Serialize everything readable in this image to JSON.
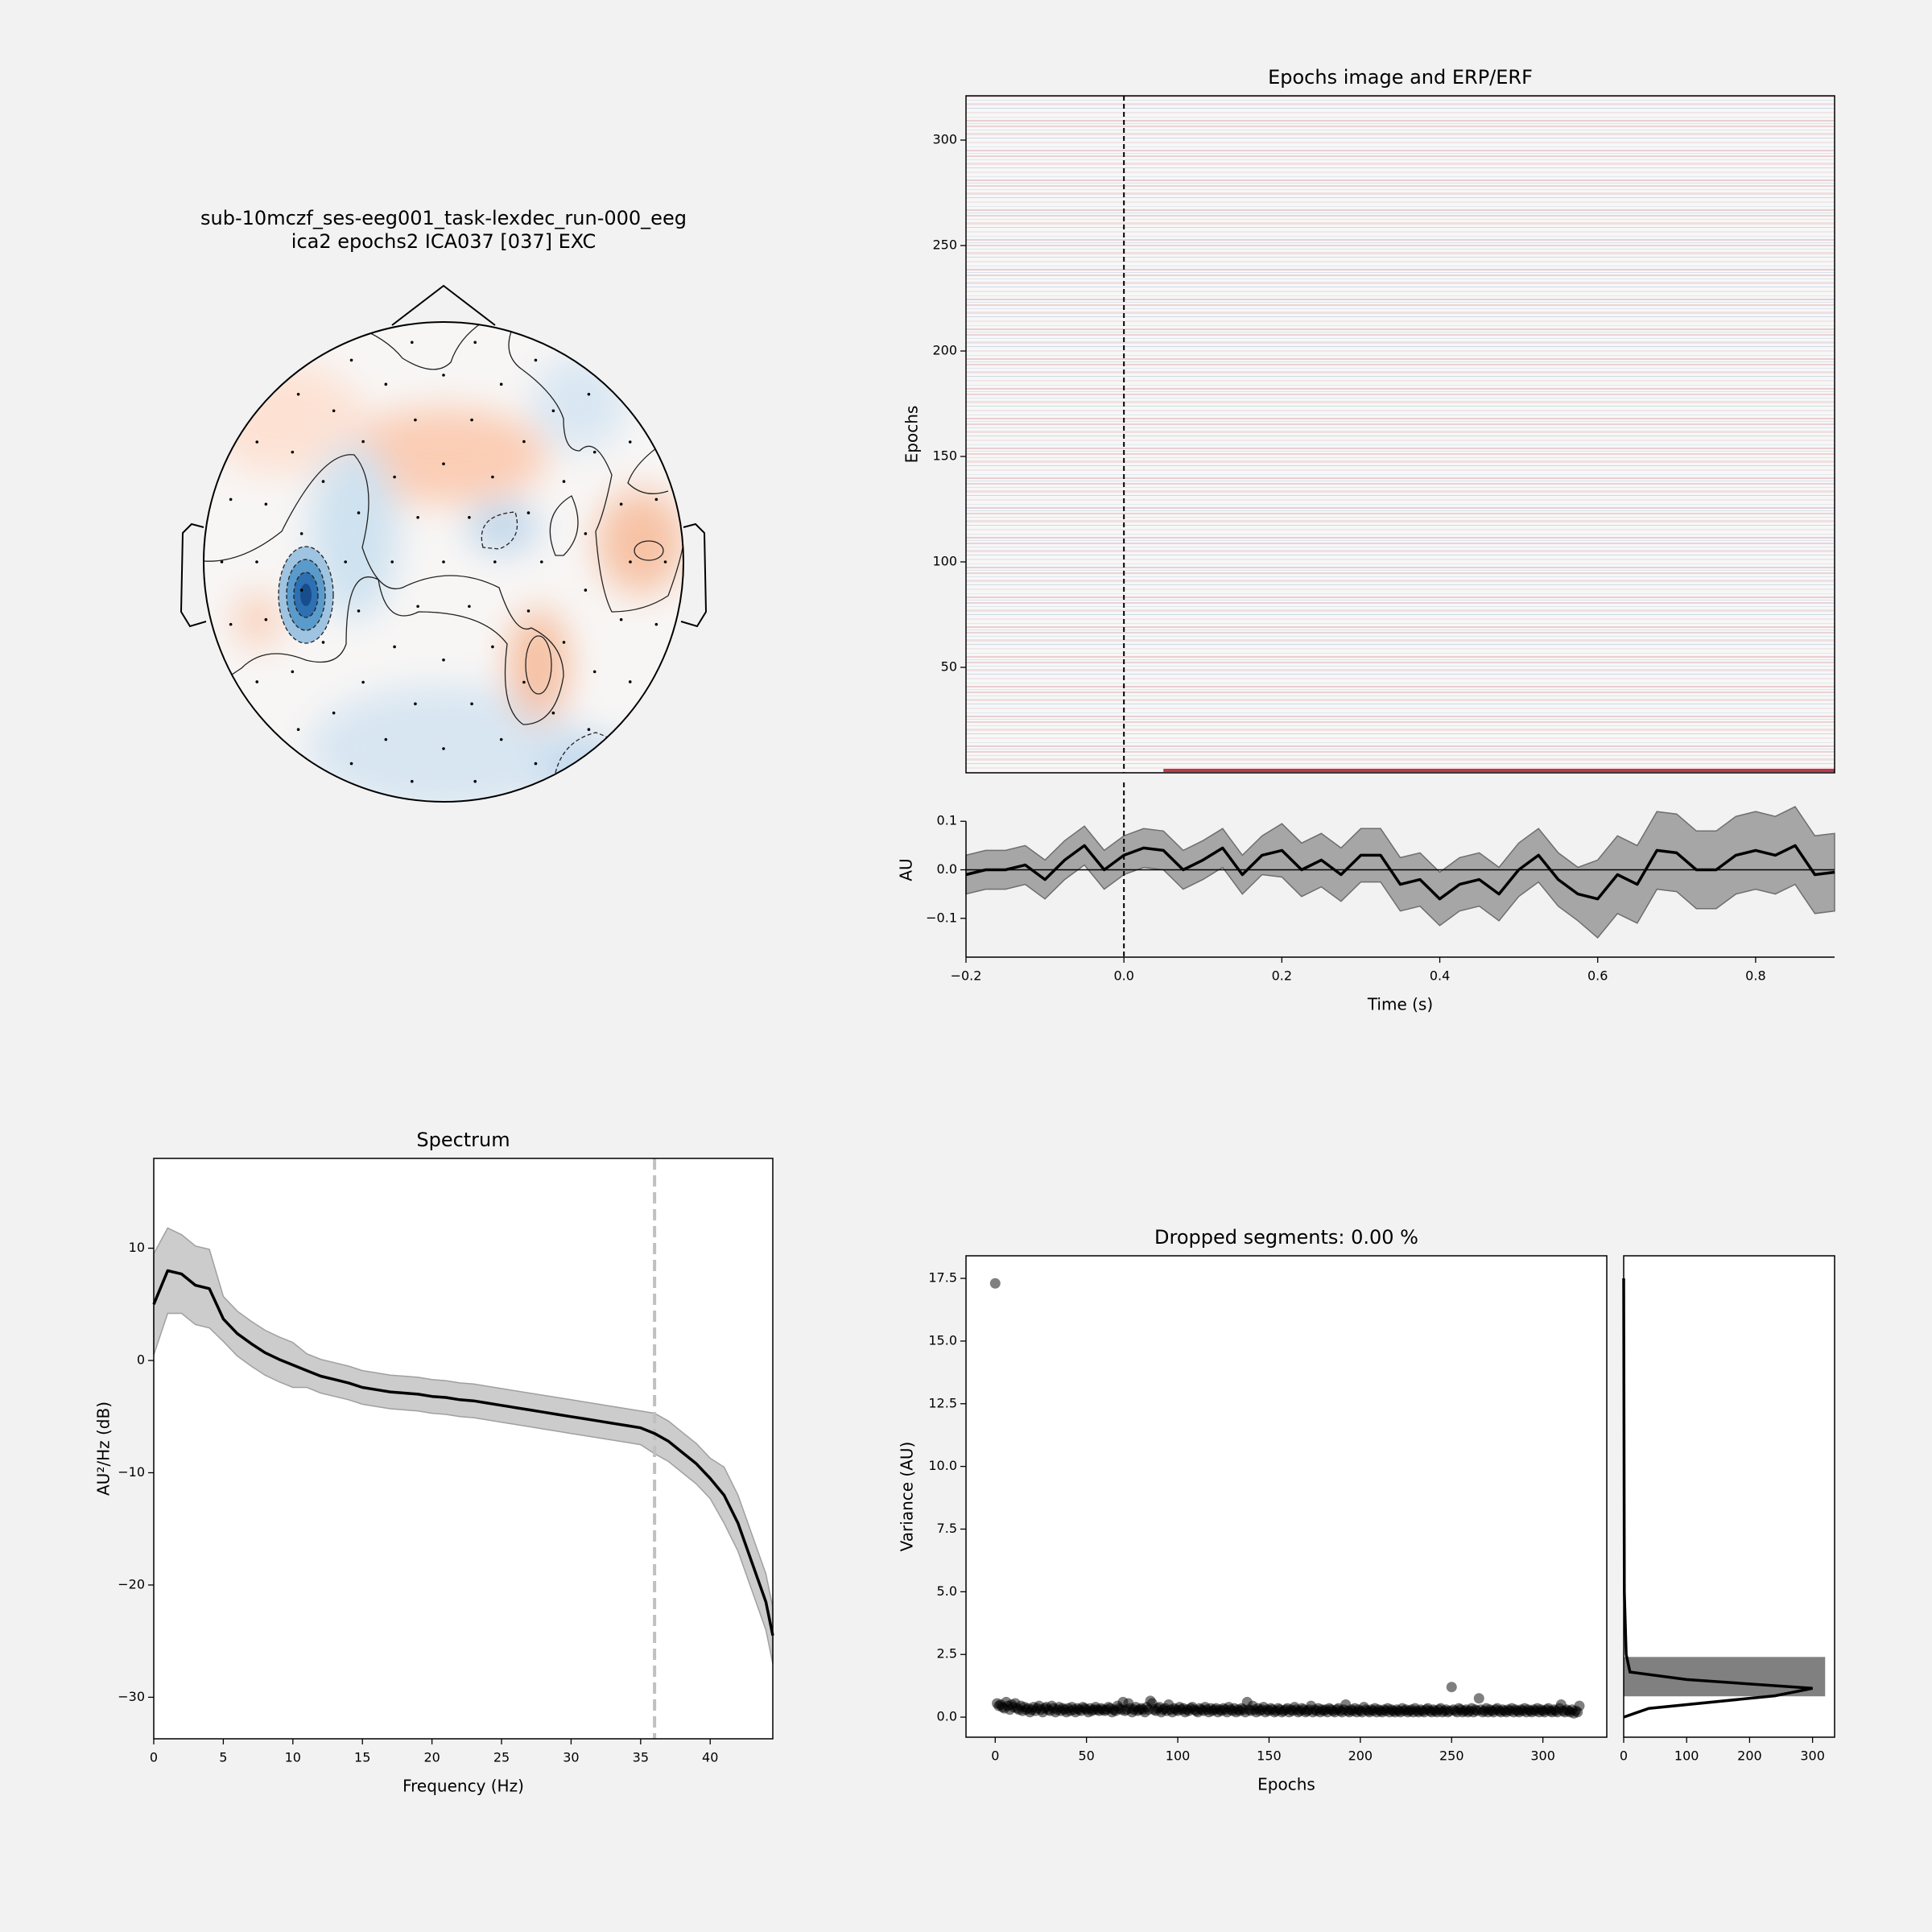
{
  "chart_data": [
    {
      "type": "topomap",
      "title": [
        "sub-10mczf_ses-eeg001_task-lexdec_run-000_eeg",
        "ica2 epochs2 ICA037 [037] EXC"
      ]
    },
    {
      "type": "image",
      "title": "Epochs image and ERP/ERF",
      "y_label": "Epochs",
      "xlim": [
        -0.2,
        0.9
      ],
      "ylim": [
        0,
        321
      ],
      "yticks": [
        50,
        100,
        150,
        200,
        250,
        300
      ],
      "vline": 0,
      "cmap": [
        "#2166ac",
        "#f7f7f7",
        "#b2182b"
      ]
    },
    {
      "type": "line",
      "x_label": "Time (s)",
      "y_label": "AU",
      "x": [
        -0.2,
        -0.175,
        -0.15,
        -0.125,
        -0.1,
        -0.075,
        -0.05,
        -0.025,
        0,
        0.025,
        0.05,
        0.075,
        0.1,
        0.125,
        0.15,
        0.175,
        0.2,
        0.225,
        0.25,
        0.275,
        0.3,
        0.325,
        0.35,
        0.375,
        0.4,
        0.425,
        0.45,
        0.475,
        0.5,
        0.525,
        0.55,
        0.575,
        0.6,
        0.625,
        0.65,
        0.675,
        0.7,
        0.725,
        0.75,
        0.775,
        0.8,
        0.825,
        0.85,
        0.875,
        0.9
      ],
      "series": [
        {
          "color": "#000000",
          "values": [
            -0.01,
            0.0,
            0.0,
            0.01,
            -0.02,
            0.02,
            0.05,
            0.0,
            0.03,
            0.045,
            0.04,
            0.0,
            0.02,
            0.045,
            -0.01,
            0.03,
            0.04,
            0.0,
            0.02,
            -0.01,
            0.03,
            0.03,
            -0.03,
            -0.02,
            -0.06,
            -0.03,
            -0.02,
            -0.05,
            0.0,
            0.03,
            -0.02,
            -0.05,
            -0.06,
            -0.01,
            -0.03,
            0.04,
            0.035,
            0.0,
            0.0,
            0.03,
            0.04,
            0.03,
            0.05,
            -0.01,
            -0.005
          ]
        }
      ],
      "band": {
        "color": "#a6a6a6",
        "lower": [
          -0.05,
          -0.04,
          -0.04,
          -0.03,
          -0.06,
          -0.02,
          0.01,
          -0.04,
          -0.01,
          0.005,
          0.0,
          -0.04,
          -0.02,
          0.005,
          -0.05,
          -0.01,
          -0.015,
          -0.055,
          -0.035,
          -0.065,
          -0.025,
          -0.025,
          -0.085,
          -0.075,
          -0.115,
          -0.085,
          -0.075,
          -0.105,
          -0.055,
          -0.025,
          -0.075,
          -0.105,
          -0.14,
          -0.09,
          -0.11,
          -0.04,
          -0.045,
          -0.08,
          -0.08,
          -0.05,
          -0.04,
          -0.05,
          -0.03,
          -0.09,
          -0.085
        ],
        "upper": [
          0.03,
          0.04,
          0.04,
          0.05,
          0.02,
          0.06,
          0.09,
          0.04,
          0.07,
          0.085,
          0.08,
          0.04,
          0.06,
          0.085,
          0.03,
          0.07,
          0.095,
          0.055,
          0.075,
          0.045,
          0.085,
          0.085,
          0.025,
          0.035,
          -0.005,
          0.025,
          0.035,
          0.005,
          0.055,
          0.085,
          0.035,
          0.005,
          0.02,
          0.07,
          0.05,
          0.12,
          0.115,
          0.08,
          0.08,
          0.11,
          0.12,
          0.11,
          0.13,
          0.07,
          0.075
        ]
      },
      "xlim": [
        -0.2,
        0.9
      ],
      "ylim": [
        -0.18,
        0.18
      ],
      "xticks": [
        {
          "value": -0.2,
          "label": "−0.2"
        },
        {
          "value": 0,
          "label": "0.0"
        },
        0.2,
        0.4,
        0.6,
        0.8
      ],
      "yticks": [
        {
          "value": -0.1,
          "label": "−0.1"
        },
        {
          "value": 0,
          "label": "0.0"
        },
        0.1
      ],
      "vline": 0,
      "hline": 0
    },
    {
      "type": "line",
      "title": "Spectrum",
      "x_label": "Frequency (Hz)",
      "y_label": "AU²/Hz (dB)",
      "x": [
        0,
        1,
        2,
        3,
        4,
        5,
        6,
        7,
        8,
        9,
        10,
        11,
        12,
        13,
        14,
        15,
        16,
        17,
        18,
        19,
        20,
        21,
        22,
        23,
        24,
        25,
        26,
        27,
        28,
        29,
        30,
        31,
        32,
        33,
        34,
        35,
        36,
        37,
        38,
        39,
        40,
        41,
        42,
        43,
        44,
        44.5
      ],
      "series": [
        {
          "color": "#000000",
          "values": [
            5.0,
            8.0,
            7.7,
            6.7,
            6.4,
            3.7,
            2.4,
            1.5,
            0.7,
            0.1,
            -0.4,
            -0.9,
            -1.4,
            -1.7,
            -2.0,
            -2.4,
            -2.6,
            -2.8,
            -2.9,
            -3.0,
            -3.2,
            -3.3,
            -3.5,
            -3.6,
            -3.8,
            -4.0,
            -4.2,
            -4.4,
            -4.6,
            -4.8,
            -5.0,
            -5.2,
            -5.4,
            -5.6,
            -5.8,
            -6.0,
            -6.5,
            -7.2,
            -8.2,
            -9.2,
            -10.5,
            -12.0,
            -14.5,
            -18.0,
            -21.5,
            -24.5
          ]
        }
      ],
      "band": {
        "color": "#cccccc",
        "lower": [
          0.5,
          4.2,
          4.2,
          3.2,
          2.9,
          1.7,
          0.4,
          -0.5,
          -1.3,
          -1.9,
          -2.4,
          -2.4,
          -2.9,
          -3.2,
          -3.5,
          -3.9,
          -4.1,
          -4.3,
          -4.4,
          -4.5,
          -4.7,
          -4.8,
          -5.0,
          -5.1,
          -5.3,
          -5.5,
          -5.7,
          -5.9,
          -6.1,
          -6.3,
          -6.5,
          -6.7,
          -6.9,
          -7.1,
          -7.3,
          -7.5,
          -8.3,
          -9.0,
          -10.0,
          -11.0,
          -12.3,
          -14.5,
          -17.0,
          -20.5,
          -24.0,
          -27.0
        ],
        "upper": [
          9.5,
          11.8,
          11.2,
          10.2,
          9.9,
          5.7,
          4.4,
          3.5,
          2.7,
          2.1,
          1.6,
          0.6,
          0.1,
          -0.2,
          -0.5,
          -0.9,
          -1.1,
          -1.3,
          -1.4,
          -1.5,
          -1.7,
          -1.8,
          -2.0,
          -2.1,
          -2.3,
          -2.5,
          -2.7,
          -2.9,
          -3.1,
          -3.3,
          -3.5,
          -3.7,
          -3.9,
          -4.1,
          -4.3,
          -4.5,
          -4.7,
          -5.4,
          -6.4,
          -7.4,
          -8.7,
          -9.5,
          -12.0,
          -15.5,
          -19.0,
          -22.0
        ]
      },
      "xlim": [
        0,
        44.5
      ],
      "ylim": [
        -33.7,
        18
      ],
      "xticks": [
        0,
        5,
        10,
        15,
        20,
        25,
        30,
        35,
        40
      ],
      "yticks": [
        {
          "value": -30,
          "label": "−30"
        },
        {
          "value": -20,
          "label": "−20"
        },
        {
          "value": -10,
          "label": "−10"
        },
        0,
        10
      ],
      "vline": 36,
      "vline_color": "#c0c0c0"
    },
    {
      "type": "scatter",
      "title": "Dropped segments: 0.00 %",
      "x_label": "Epochs",
      "y_label": "Variance (AU)",
      "color": "#000000",
      "x": [
        0,
        1,
        2,
        3,
        4,
        5,
        6,
        7,
        8,
        9,
        10,
        11,
        12,
        13,
        14,
        15,
        16,
        17,
        18,
        19,
        20,
        21,
        22,
        23,
        24,
        25,
        26,
        27,
        28,
        29,
        30,
        31,
        32,
        33,
        34,
        35,
        36,
        37,
        38,
        39,
        40,
        41,
        42,
        43,
        44,
        45,
        46,
        47,
        48,
        49,
        50,
        51,
        52,
        53,
        54,
        55,
        56,
        57,
        58,
        59,
        60,
        61,
        62,
        63,
        64,
        65,
        66,
        67,
        68,
        69,
        70,
        71,
        72,
        73,
        74,
        75,
        76,
        77,
        78,
        79,
        80,
        81,
        82,
        83,
        84,
        85,
        86,
        87,
        88,
        89,
        90,
        91,
        92,
        93,
        94,
        95,
        96,
        97,
        98,
        99,
        100,
        101,
        102,
        103,
        104,
        105,
        106,
        107,
        108,
        109,
        110,
        111,
        112,
        113,
        114,
        115,
        116,
        117,
        118,
        119,
        120,
        121,
        122,
        123,
        124,
        125,
        126,
        127,
        128,
        129,
        130,
        131,
        132,
        133,
        134,
        135,
        136,
        137,
        138,
        139,
        140,
        141,
        142,
        143,
        144,
        145,
        146,
        147,
        148,
        149,
        150,
        151,
        152,
        153,
        154,
        155,
        156,
        157,
        158,
        159,
        160,
        161,
        162,
        163,
        164,
        165,
        166,
        167,
        168,
        169,
        170,
        171,
        172,
        173,
        174,
        175,
        176,
        177,
        178,
        179,
        180,
        181,
        182,
        183,
        184,
        185,
        186,
        187,
        188,
        189,
        190,
        191,
        192,
        193,
        194,
        195,
        196,
        197,
        198,
        199,
        200,
        201,
        202,
        203,
        204,
        205,
        206,
        207,
        208,
        209,
        210,
        211,
        212,
        213,
        214,
        215,
        216,
        217,
        218,
        219,
        220,
        221,
        222,
        223,
        224,
        225,
        226,
        227,
        228,
        229,
        230,
        231,
        232,
        233,
        234,
        235,
        236,
        237,
        238,
        239,
        240,
        241,
        242,
        243,
        244,
        245,
        246,
        247,
        248,
        249,
        250,
        251,
        252,
        253,
        254,
        255,
        256,
        257,
        258,
        259,
        260,
        261,
        262,
        263,
        264,
        265,
        266,
        267,
        268,
        269,
        270,
        271,
        272,
        273,
        274,
        275,
        276,
        277,
        278,
        279,
        280,
        281,
        282,
        283,
        284,
        285,
        286,
        287,
        288,
        289,
        290,
        291,
        292,
        293,
        294,
        295,
        296,
        297,
        298,
        299,
        300,
        301,
        302,
        303,
        304,
        305,
        306,
        307,
        308,
        309,
        310,
        311,
        312,
        313,
        314,
        315,
        316,
        317,
        318,
        319,
        320
      ],
      "values": [
        17.3,
        0.55,
        0.45,
        0.5,
        0.4,
        0.35,
        0.6,
        0.45,
        0.3,
        0.5,
        0.4,
        0.55,
        0.35,
        0.3,
        0.45,
        0.25,
        0.4,
        0.3,
        0.35,
        0.2,
        0.3,
        0.4,
        0.25,
        0.35,
        0.45,
        0.3,
        0.2,
        0.35,
        0.4,
        0.3,
        0.25,
        0.45,
        0.35,
        0.2,
        0.3,
        0.4,
        0.25,
        0.35,
        0.3,
        0.2,
        0.35,
        0.25,
        0.4,
        0.3,
        0.2,
        0.35,
        0.3,
        0.25,
        0.4,
        0.35,
        0.3,
        0.2,
        0.35,
        0.25,
        0.3,
        0.4,
        0.3,
        0.25,
        0.35,
        0.3,
        0.25,
        0.3,
        0.4,
        0.35,
        0.2,
        0.3,
        0.25,
        0.45,
        0.35,
        0.3,
        0.6,
        0.25,
        0.3,
        0.55,
        0.35,
        0.2,
        0.3,
        0.4,
        0.25,
        0.3,
        0.35,
        0.3,
        0.2,
        0.4,
        0.3,
        0.65,
        0.55,
        0.3,
        0.25,
        0.35,
        0.4,
        0.2,
        0.3,
        0.35,
        0.25,
        0.5,
        0.3,
        0.2,
        0.35,
        0.3,
        0.25,
        0.4,
        0.3,
        0.35,
        0.2,
        0.3,
        0.25,
        0.35,
        0.4,
        0.3,
        0.25,
        0.2,
        0.35,
        0.3,
        0.25,
        0.4,
        0.3,
        0.2,
        0.35,
        0.25,
        0.3,
        0.35,
        0.2,
        0.3,
        0.25,
        0.35,
        0.3,
        0.2,
        0.4,
        0.3,
        0.25,
        0.35,
        0.2,
        0.3,
        0.25,
        0.35,
        0.3,
        0.2,
        0.6,
        0.3,
        0.25,
        0.45,
        0.3,
        0.2,
        0.35,
        0.25,
        0.3,
        0.4,
        0.2,
        0.3,
        0.25,
        0.35,
        0.3,
        0.2,
        0.25,
        0.35,
        0.3,
        0.2,
        0.25,
        0.3,
        0.35,
        0.2,
        0.3,
        0.25,
        0.4,
        0.3,
        0.2,
        0.25,
        0.35,
        0.3,
        0.2,
        0.25,
        0.3,
        0.45,
        0.2,
        0.3,
        0.25,
        0.35,
        0.2,
        0.3,
        0.25,
        0.3,
        0.2,
        0.35,
        0.3,
        0.25,
        0.2,
        0.3,
        0.35,
        0.25,
        0.2,
        0.3,
        0.5,
        0.25,
        0.2,
        0.3,
        0.25,
        0.35,
        0.2,
        0.3,
        0.25,
        0.2,
        0.4,
        0.3,
        0.25,
        0.2,
        0.3,
        0.25,
        0.35,
        0.2,
        0.3,
        0.25,
        0.2,
        0.3,
        0.25,
        0.35,
        0.2,
        0.3,
        0.25,
        0.2,
        0.3,
        0.25,
        0.2,
        0.35,
        0.25,
        0.3,
        0.2,
        0.25,
        0.3,
        0.2,
        0.35,
        0.25,
        0.2,
        0.3,
        0.25,
        0.2,
        0.3,
        0.35,
        0.25,
        0.2,
        0.3,
        0.25,
        0.2,
        0.3,
        0.35,
        0.2,
        0.25,
        0.3,
        0.2,
        0.25,
        1.2,
        0.3,
        0.25,
        0.2,
        0.35,
        0.3,
        0.2,
        0.25,
        0.3,
        0.2,
        0.25,
        0.35,
        0.2,
        0.3,
        0.25,
        0.75,
        0.3,
        0.2,
        0.25,
        0.35,
        0.2,
        0.3,
        0.25,
        0.2,
        0.3,
        0.35,
        0.25,
        0.2,
        0.3,
        0.25,
        0.2,
        0.3,
        0.25,
        0.35,
        0.2,
        0.3,
        0.25,
        0.2,
        0.3,
        0.25,
        0.35,
        0.2,
        0.3,
        0.25,
        0.2,
        0.3,
        0.25,
        0.35,
        0.2,
        0.3,
        0.25,
        0.2,
        0.3,
        0.35,
        0.25,
        0.2,
        0.3,
        0.25,
        0.2,
        0.35,
        0.5,
        0.25,
        0.2,
        0.3,
        0.25,
        0.2,
        0.3,
        0.15,
        0.25,
        0.2,
        0.45
      ],
      "xlim": [
        -16,
        335
      ],
      "ylim": [
        -0.8,
        18.4
      ],
      "xticks": [
        0,
        50,
        100,
        150,
        200,
        250,
        300
      ],
      "yticks": [
        {
          "value": 0,
          "label": "0.0"
        },
        2.5,
        {
          "value": 5,
          "label": "5.0"
        },
        7.5,
        {
          "value": 10,
          "label": "10.0"
        },
        12.5,
        {
          "value": 15,
          "label": "15.0"
        },
        17.5
      ]
    },
    {
      "type": "histogram",
      "orientation": "horizontal",
      "color": "#808080",
      "bins": [
        0.83,
        2.4
      ],
      "counts": [
        320
      ],
      "kde": {
        "x": [
          0,
          40,
          240,
          300,
          100,
          10,
          4,
          1,
          0
        ],
        "y": [
          0.0,
          0.35,
          0.85,
          1.15,
          1.5,
          1.8,
          2.5,
          5.0,
          17.5
        ]
      },
      "xlim": [
        0,
        335
      ],
      "ylim": [
        -0.8,
        18.4
      ],
      "xticks": [
        0,
        100,
        200,
        300
      ]
    }
  ]
}
